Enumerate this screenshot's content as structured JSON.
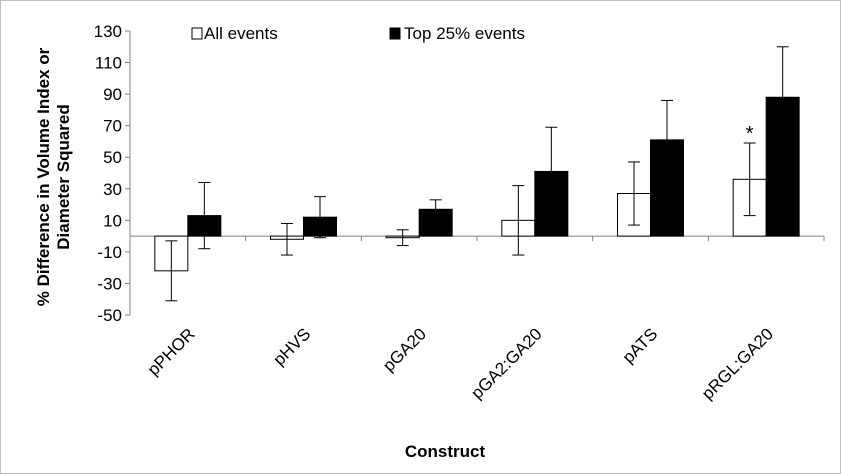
{
  "chart_data": {
    "type": "bar",
    "title": "",
    "xlabel": "Construct",
    "ylabel_lines": [
      "% Difference in Volume Index or",
      "Diameter Squared"
    ],
    "categories": [
      "pPHOR",
      "pHVS",
      "pGA20",
      "pGA2:GA20",
      "pATS",
      "pRGL:GA20"
    ],
    "ylim": [
      -50,
      130
    ],
    "yticks": [
      -50,
      -30,
      -10,
      10,
      30,
      50,
      70,
      90,
      110,
      130
    ],
    "grid": false,
    "legend": "top",
    "series": [
      {
        "name": "All events",
        "fill": "#ffffff",
        "values": [
          -22,
          -2,
          -1,
          10,
          27,
          36
        ],
        "errors": [
          19,
          10,
          5,
          22,
          20,
          23
        ]
      },
      {
        "name": "Top 25% events",
        "fill": "#000000",
        "values": [
          13,
          12,
          17,
          41,
          61,
          88
        ],
        "errors": [
          21,
          13,
          6,
          28,
          25,
          32
        ]
      }
    ],
    "annotations": [
      {
        "category": "pRGL:GA20",
        "series": "All events",
        "text": "*"
      }
    ]
  }
}
